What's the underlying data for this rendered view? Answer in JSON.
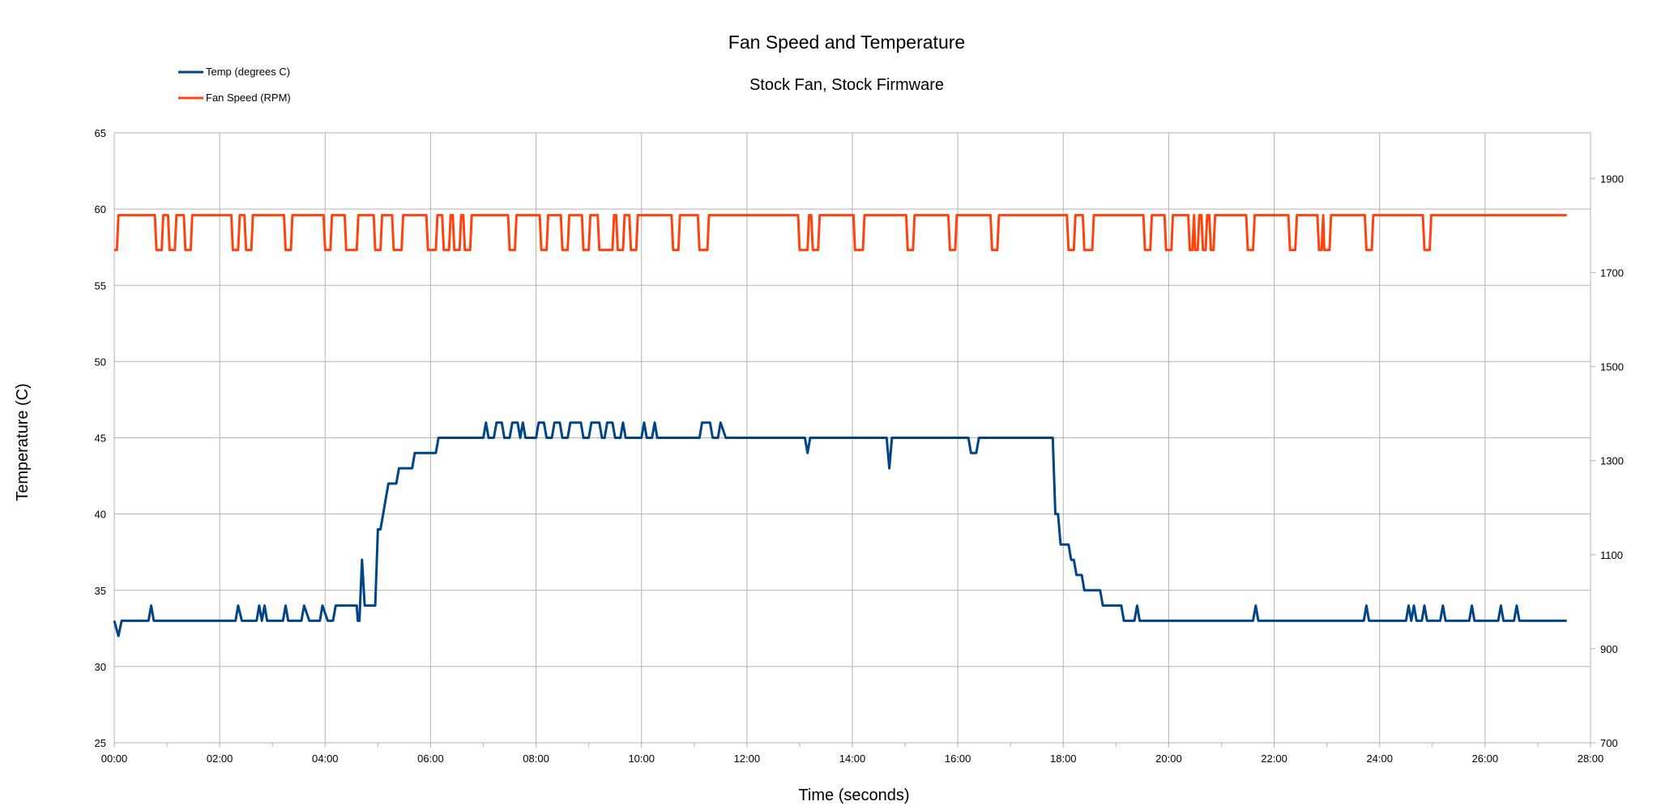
{
  "chart_data": {
    "type": "line",
    "title": "Fan Speed and Temperature",
    "subtitle": "Stock Fan, Stock Firmware",
    "xlabel": "Time (seconds)",
    "ylabel": "Temperature (C)",
    "xlim": [
      0,
      28
    ],
    "ylim": [
      25,
      65
    ],
    "y2lim": [
      700,
      1997
    ],
    "x_ticks": [
      "00:00",
      "02:00",
      "04:00",
      "06:00",
      "08:00",
      "10:00",
      "12:00",
      "14:00",
      "16:00",
      "18:00",
      "20:00",
      "22:00",
      "24:00",
      "26:00",
      "28:00"
    ],
    "y_ticks": [
      25,
      30,
      35,
      40,
      45,
      50,
      55,
      60,
      65
    ],
    "y2_ticks": [
      700,
      900,
      1100,
      1300,
      1500,
      1700,
      1900
    ],
    "grid": true,
    "legend_position": "top-left",
    "series": [
      {
        "name": "Temp (degrees C)",
        "axis": "left",
        "color": "#004586",
        "points": [
          [
            0,
            33
          ],
          [
            0.08,
            32
          ],
          [
            0.14,
            33
          ],
          [
            0.65,
            33
          ],
          [
            0.7,
            34
          ],
          [
            0.75,
            33
          ],
          [
            2.3,
            33
          ],
          [
            2.35,
            34
          ],
          [
            2.42,
            33
          ],
          [
            2.7,
            33
          ],
          [
            2.75,
            34
          ],
          [
            2.8,
            33
          ],
          [
            2.85,
            34
          ],
          [
            2.9,
            33
          ],
          [
            3.2,
            33
          ],
          [
            3.25,
            34
          ],
          [
            3.3,
            33
          ],
          [
            3.55,
            33
          ],
          [
            3.6,
            34
          ],
          [
            3.7,
            33
          ],
          [
            3.9,
            33
          ],
          [
            3.95,
            34
          ],
          [
            4.05,
            33
          ],
          [
            4.15,
            33
          ],
          [
            4.2,
            34
          ],
          [
            4.6,
            34
          ],
          [
            4.62,
            33
          ],
          [
            4.65,
            33
          ],
          [
            4.7,
            37
          ],
          [
            4.75,
            34
          ],
          [
            4.95,
            34
          ],
          [
            5.0,
            39
          ],
          [
            5.05,
            39
          ],
          [
            5.1,
            40
          ],
          [
            5.15,
            41
          ],
          [
            5.2,
            42
          ],
          [
            5.35,
            42
          ],
          [
            5.4,
            43
          ],
          [
            5.65,
            43
          ],
          [
            5.7,
            44
          ],
          [
            6.1,
            44
          ],
          [
            6.15,
            45
          ],
          [
            7.0,
            45
          ],
          [
            7.05,
            46
          ],
          [
            7.1,
            45
          ],
          [
            7.2,
            45
          ],
          [
            7.25,
            46
          ],
          [
            7.35,
            46
          ],
          [
            7.4,
            45
          ],
          [
            7.5,
            45
          ],
          [
            7.55,
            46
          ],
          [
            7.65,
            46
          ],
          [
            7.7,
            45
          ],
          [
            7.75,
            46
          ],
          [
            7.8,
            45
          ],
          [
            8.0,
            45
          ],
          [
            8.05,
            46
          ],
          [
            8.15,
            46
          ],
          [
            8.2,
            45
          ],
          [
            8.3,
            45
          ],
          [
            8.35,
            46
          ],
          [
            8.45,
            46
          ],
          [
            8.5,
            45
          ],
          [
            8.6,
            45
          ],
          [
            8.65,
            46
          ],
          [
            8.85,
            46
          ],
          [
            8.9,
            45
          ],
          [
            9.0,
            45
          ],
          [
            9.05,
            46
          ],
          [
            9.2,
            46
          ],
          [
            9.25,
            45
          ],
          [
            9.3,
            45
          ],
          [
            9.35,
            46
          ],
          [
            9.45,
            46
          ],
          [
            9.5,
            45
          ],
          [
            9.6,
            45
          ],
          [
            9.65,
            46
          ],
          [
            9.7,
            45
          ],
          [
            10.0,
            45
          ],
          [
            10.05,
            46
          ],
          [
            10.1,
            45
          ],
          [
            10.2,
            45
          ],
          [
            10.25,
            46
          ],
          [
            10.3,
            45
          ],
          [
            11.1,
            45
          ],
          [
            11.15,
            46
          ],
          [
            11.3,
            46
          ],
          [
            11.35,
            45
          ],
          [
            11.45,
            45
          ],
          [
            11.5,
            46
          ],
          [
            11.6,
            45
          ],
          [
            13.1,
            45
          ],
          [
            13.15,
            44
          ],
          [
            13.2,
            45
          ],
          [
            14.65,
            45
          ],
          [
            14.7,
            43
          ],
          [
            14.75,
            45
          ],
          [
            16.2,
            45
          ],
          [
            16.25,
            44
          ],
          [
            16.35,
            44
          ],
          [
            16.4,
            45
          ],
          [
            17.8,
            45
          ],
          [
            17.85,
            40
          ],
          [
            17.9,
            40
          ],
          [
            17.95,
            38
          ],
          [
            18.1,
            38
          ],
          [
            18.15,
            37
          ],
          [
            18.2,
            37
          ],
          [
            18.25,
            36
          ],
          [
            18.35,
            36
          ],
          [
            18.4,
            35
          ],
          [
            18.7,
            35
          ],
          [
            18.75,
            34
          ],
          [
            19.1,
            34
          ],
          [
            19.15,
            33
          ],
          [
            19.35,
            33
          ],
          [
            19.4,
            34
          ],
          [
            19.45,
            33
          ],
          [
            21.6,
            33
          ],
          [
            21.65,
            34
          ],
          [
            21.7,
            33
          ],
          [
            23.7,
            33
          ],
          [
            23.75,
            34
          ],
          [
            23.8,
            33
          ],
          [
            24.5,
            33
          ],
          [
            24.55,
            34
          ],
          [
            24.6,
            33
          ],
          [
            24.65,
            34
          ],
          [
            24.7,
            33
          ],
          [
            24.8,
            33
          ],
          [
            24.85,
            34
          ],
          [
            24.9,
            33
          ],
          [
            25.15,
            33
          ],
          [
            25.2,
            34
          ],
          [
            25.25,
            33
          ],
          [
            25.7,
            33
          ],
          [
            25.75,
            34
          ],
          [
            25.8,
            33
          ],
          [
            26.25,
            33
          ],
          [
            26.3,
            34
          ],
          [
            26.35,
            33
          ],
          [
            26.55,
            33
          ],
          [
            26.6,
            34
          ],
          [
            26.65,
            33
          ],
          [
            27.55,
            33
          ]
        ]
      },
      {
        "name": "Fan Speed (RPM)",
        "axis": "right",
        "color": "#ff420e",
        "high": 1822,
        "low": 1748,
        "dips": [
          [
            0.0,
            0.05
          ],
          [
            0.8,
            0.9
          ],
          [
            1.05,
            1.15
          ],
          [
            1.35,
            1.45
          ],
          [
            2.25,
            2.35
          ],
          [
            2.5,
            2.6
          ],
          [
            3.25,
            3.35
          ],
          [
            4.0,
            4.1
          ],
          [
            4.4,
            4.6
          ],
          [
            4.95,
            5.05
          ],
          [
            5.3,
            5.45
          ],
          [
            5.95,
            6.1
          ],
          [
            6.25,
            6.35
          ],
          [
            6.45,
            6.55
          ],
          [
            6.65,
            6.75
          ],
          [
            7.5,
            7.6
          ],
          [
            8.1,
            8.2
          ],
          [
            8.5,
            8.6
          ],
          [
            8.9,
            9.0
          ],
          [
            9.2,
            9.45
          ],
          [
            9.55,
            9.65
          ],
          [
            9.8,
            9.9
          ],
          [
            10.6,
            10.7
          ],
          [
            11.1,
            11.25
          ],
          [
            13.0,
            13.15
          ],
          [
            13.25,
            13.35
          ],
          [
            14.05,
            14.2
          ],
          [
            15.05,
            15.15
          ],
          [
            15.85,
            15.95
          ],
          [
            16.65,
            16.75
          ],
          [
            18.1,
            18.2
          ],
          [
            18.4,
            18.55
          ],
          [
            19.55,
            19.65
          ],
          [
            19.95,
            20.05
          ],
          [
            20.4,
            20.45
          ],
          [
            20.5,
            20.55
          ],
          [
            20.65,
            20.7
          ],
          [
            20.8,
            20.85
          ],
          [
            21.5,
            21.6
          ],
          [
            22.3,
            22.4
          ],
          [
            22.85,
            22.9
          ],
          [
            22.95,
            23.05
          ],
          [
            23.75,
            23.85
          ],
          [
            24.85,
            24.95
          ]
        ]
      }
    ]
  }
}
